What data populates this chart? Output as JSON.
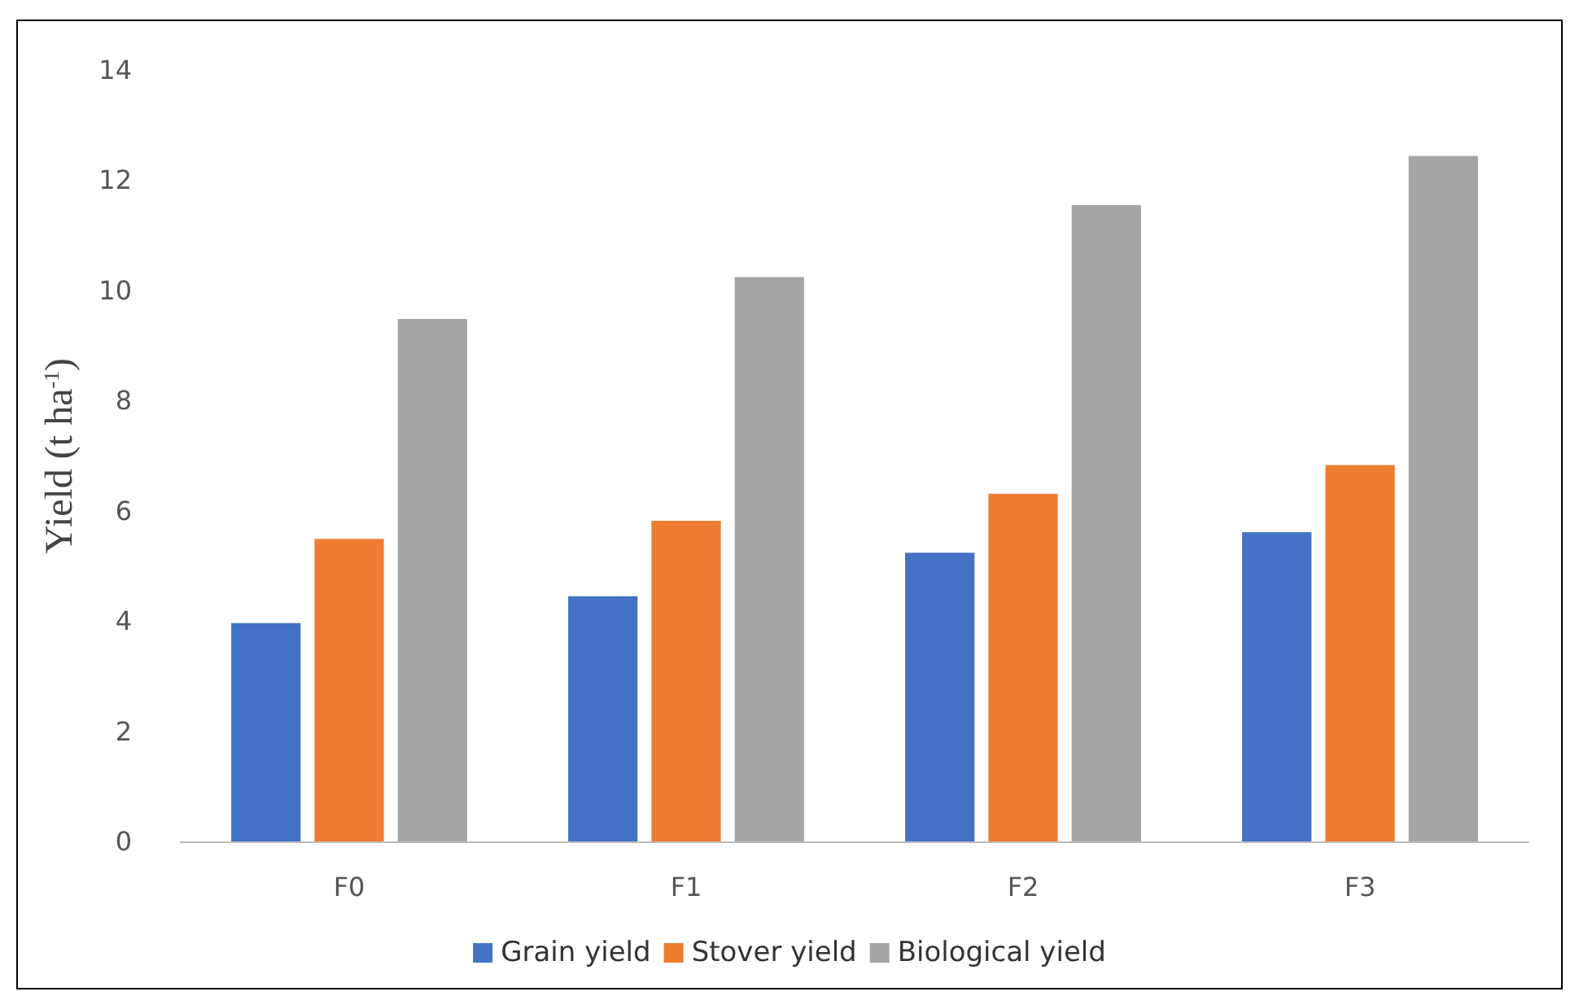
{
  "chart_data": {
    "type": "bar",
    "ylabel": "Yield (t ha$^{-1}$)",
    "categories": [
      "F0",
      "F1",
      "F2",
      "F3"
    ],
    "series": [
      {
        "name": "Grain yield",
        "color": "#4472c4",
        "values": [
          3.96,
          4.45,
          5.24,
          5.61
        ]
      },
      {
        "name": "Stover yield",
        "color": "#ed7d31",
        "values": [
          5.49,
          5.82,
          6.31,
          6.83
        ]
      },
      {
        "name": "Biological yield",
        "color": "#a5a5a5",
        "values": [
          9.48,
          10.24,
          11.55,
          12.44
        ]
      }
    ],
    "ylim": [
      0,
      14
    ],
    "yticks": [
      0,
      2,
      4,
      6,
      8,
      10,
      12,
      14
    ],
    "grid": false,
    "legend": "bottom"
  }
}
